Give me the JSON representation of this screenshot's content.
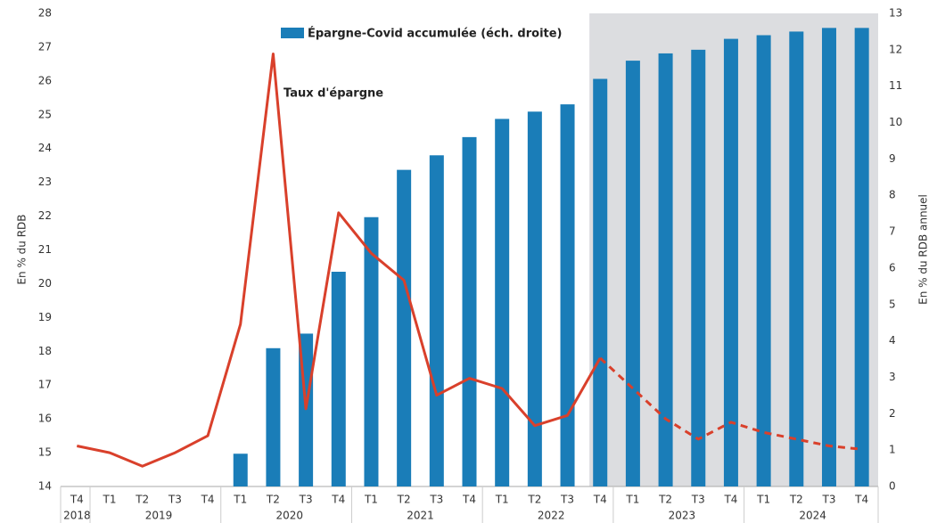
{
  "chart_data": {
    "type": "bar_line",
    "annotation": "Taux d'épargne",
    "ylabel": "En % du RDB",
    "y2label": "En % du RDB annuel",
    "categories": [
      "T4",
      "T1",
      "T2",
      "T3",
      "T4",
      "T1",
      "T2",
      "T3",
      "T4",
      "T1",
      "T2",
      "T3",
      "T4",
      "T1",
      "T2",
      "T3",
      "T4",
      "T1",
      "T2",
      "T3",
      "T4",
      "T1",
      "T2",
      "T3",
      "T4"
    ],
    "year_groups": [
      {
        "label": "2018",
        "count": 1
      },
      {
        "label": "2019",
        "count": 4
      },
      {
        "label": "2020",
        "count": 4
      },
      {
        "label": "2021",
        "count": 4
      },
      {
        "label": "2022",
        "count": 4
      },
      {
        "label": "2023",
        "count": 4
      },
      {
        "label": "2024",
        "count": 4
      }
    ],
    "series": [
      {
        "name": "Épargne-Covid accumulée (éch. droite)",
        "type": "bar",
        "axis": "y2",
        "color": "#1a7db8",
        "values": [
          null,
          null,
          null,
          null,
          null,
          0.9,
          3.8,
          4.2,
          5.9,
          7.4,
          8.7,
          9.1,
          9.6,
          10.1,
          10.3,
          10.5,
          11.2,
          11.7,
          11.9,
          12.0,
          12.3,
          12.4,
          12.5,
          12.6,
          12.6
        ]
      },
      {
        "type": "line",
        "axis": "y",
        "color": "#d9402b",
        "values": [
          15.2,
          15.0,
          14.6,
          15.0,
          15.5,
          18.8,
          26.8,
          16.3,
          22.1,
          20.9,
          20.1,
          16.7,
          17.2,
          16.9,
          15.8,
          16.1,
          17.8,
          16.9,
          16.0,
          15.4,
          15.9,
          15.6,
          15.4,
          15.2,
          15.1
        ]
      }
    ],
    "projection_from": 16,
    "shade_color": "#dcdde0",
    "ylim": [
      14,
      28
    ],
    "yticks": [
      14,
      15,
      16,
      17,
      18,
      19,
      20,
      21,
      22,
      23,
      24,
      25,
      26,
      27,
      28
    ],
    "y2lim": [
      0,
      13
    ],
    "y2ticks": [
      0,
      1,
      2,
      3,
      4,
      5,
      6,
      7,
      8,
      9,
      10,
      11,
      12,
      13
    ],
    "grid": false
  }
}
